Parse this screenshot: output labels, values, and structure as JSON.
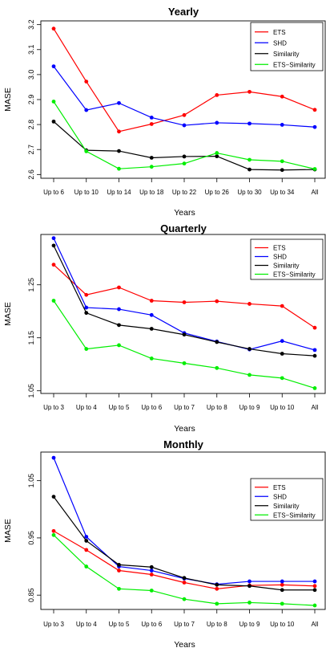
{
  "chart_data": [
    {
      "type": "line",
      "title": "Yearly",
      "xlabel": "Years",
      "ylabel": "MASE",
      "categories": [
        "Up to 6",
        "Up to 10",
        "Up to 14",
        "Up to 18",
        "Up to 22",
        "Up to 26",
        "Up to 30",
        "Up to 34",
        "All"
      ],
      "ylim": [
        2.585,
        3.215
      ],
      "yticks": [
        2.6,
        2.7,
        2.8,
        2.9,
        3.0,
        3.1,
        3.2
      ],
      "ytick_labels": [
        "2.6",
        "2.7",
        "2.8",
        "2.9",
        "3.0",
        "3.1",
        "3.2"
      ],
      "grid": false,
      "legend_position": "top-right",
      "series": [
        {
          "name": "ETS",
          "color": "#ff0000",
          "values": [
            3.184,
            2.972,
            2.772,
            2.802,
            2.838,
            2.918,
            2.931,
            2.912,
            2.859
          ]
        },
        {
          "name": "SHD",
          "color": "#0000ff",
          "values": [
            3.033,
            2.858,
            2.886,
            2.828,
            2.797,
            2.807,
            2.804,
            2.799,
            2.79
          ]
        },
        {
          "name": "Similarity",
          "color": "#000000",
          "values": [
            2.812,
            2.697,
            2.694,
            2.667,
            2.672,
            2.673,
            2.62,
            2.618,
            2.62
          ]
        },
        {
          "name": "ETS−Similarity",
          "color": "#00ee00",
          "values": [
            2.892,
            2.693,
            2.623,
            2.631,
            2.644,
            2.686,
            2.659,
            2.653,
            2.622
          ]
        }
      ]
    },
    {
      "type": "line",
      "title": "Quarterly",
      "xlabel": "Years",
      "ylabel": "MASE",
      "categories": [
        "Up to 3",
        "Up to 4",
        "Up to 5",
        "Up to 6",
        "Up to 7",
        "Up to 8",
        "Up to 9",
        "Up to 10",
        "All"
      ],
      "ylim": [
        1.045,
        1.345
      ],
      "yticks": [
        1.05,
        1.15,
        1.25
      ],
      "ytick_labels": [
        "1.05",
        "1.15",
        "1.25"
      ],
      "grid": false,
      "legend_position": "top-right",
      "series": [
        {
          "name": "ETS",
          "color": "#ff0000",
          "values": [
            1.288,
            1.231,
            1.245,
            1.22,
            1.217,
            1.219,
            1.214,
            1.21,
            1.169
          ]
        },
        {
          "name": "SHD",
          "color": "#0000ff",
          "values": [
            1.338,
            1.207,
            1.204,
            1.193,
            1.159,
            1.143,
            1.128,
            1.144,
            1.127
          ]
        },
        {
          "name": "Similarity",
          "color": "#000000",
          "values": [
            1.324,
            1.197,
            1.174,
            1.167,
            1.156,
            1.142,
            1.129,
            1.12,
            1.116
          ]
        },
        {
          "name": "ETS−Similarity",
          "color": "#00ee00",
          "values": [
            1.22,
            1.129,
            1.136,
            1.111,
            1.102,
            1.093,
            1.08,
            1.074,
            1.055
          ]
        }
      ]
    },
    {
      "type": "line",
      "title": "Monthly",
      "xlabel": "Years",
      "ylabel": "MASE",
      "categories": [
        "Up to 3",
        "Up to 4",
        "Up to 5",
        "Up to 6",
        "Up to 7",
        "Up to 8",
        "Up to 9",
        "Up to 10",
        "All"
      ],
      "ylim": [
        0.825,
        1.1
      ],
      "yticks": [
        0.85,
        0.95,
        1.05
      ],
      "ytick_labels": [
        "0.85",
        "0.95",
        "1.05"
      ],
      "grid": false,
      "legend_position": "top-right",
      "series": [
        {
          "name": "ETS",
          "color": "#ff0000",
          "values": [
            0.962,
            0.929,
            0.893,
            0.886,
            0.872,
            0.861,
            0.867,
            0.868,
            0.866
          ]
        },
        {
          "name": "SHD",
          "color": "#0000ff",
          "values": [
            1.09,
            0.952,
            0.9,
            0.893,
            0.879,
            0.869,
            0.874,
            0.874,
            0.874
          ]
        },
        {
          "name": "Similarity",
          "color": "#000000",
          "values": [
            1.022,
            0.945,
            0.903,
            0.899,
            0.88,
            0.868,
            0.866,
            0.859,
            0.859
          ]
        },
        {
          "name": "ETS−Similarity",
          "color": "#00ee00",
          "values": [
            0.955,
            0.9,
            0.861,
            0.858,
            0.843,
            0.835,
            0.837,
            0.835,
            0.832
          ]
        }
      ]
    }
  ]
}
